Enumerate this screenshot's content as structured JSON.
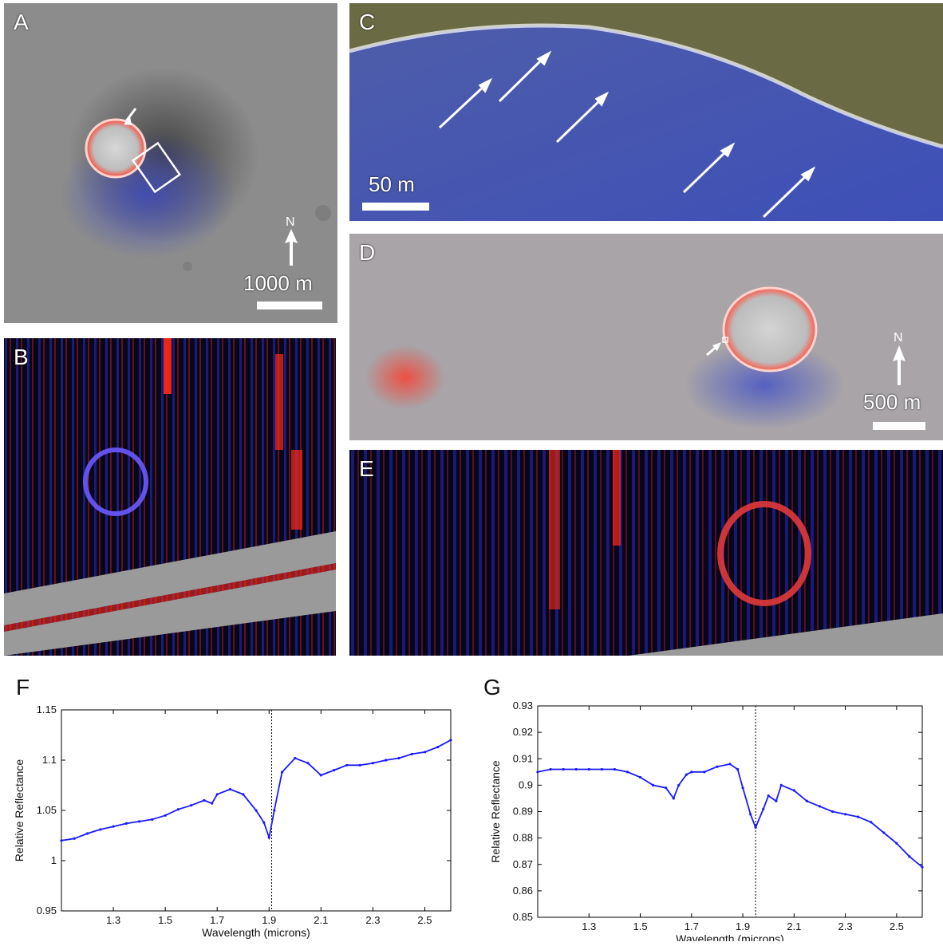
{
  "panels": {
    "A": {
      "label": "A",
      "scale": "1000 m",
      "north": "N"
    },
    "B": {
      "label": "B"
    },
    "C": {
      "label": "C",
      "scale": "50 m"
    },
    "D": {
      "label": "D",
      "scale": "500 m",
      "north": "N"
    },
    "E": {
      "label": "E"
    }
  },
  "colors": {
    "red_signal": "#ff2a1a",
    "blue_signal": "#2a3aff",
    "series": "#1a1aff"
  },
  "chart_data": [
    {
      "type": "line",
      "label": "F",
      "xlabel": "Wavelength (microns)",
      "ylabel": "Relative Reflectance",
      "xlim": [
        1.1,
        2.6
      ],
      "ylim": [
        0.95,
        1.15
      ],
      "xticks": [
        1.3,
        1.5,
        1.7,
        1.9,
        2.1,
        2.3,
        2.5
      ],
      "yticks": [
        0.95,
        1,
        1.05,
        1.1,
        1.15
      ],
      "ytick_labels": [
        "0.95",
        "1",
        "1.05",
        "1.1",
        "1.15"
      ],
      "vline": 1.91,
      "x": [
        1.1,
        1.15,
        1.2,
        1.25,
        1.3,
        1.35,
        1.4,
        1.45,
        1.5,
        1.55,
        1.6,
        1.65,
        1.68,
        1.7,
        1.75,
        1.8,
        1.85,
        1.88,
        1.9,
        1.92,
        1.95,
        2.0,
        2.05,
        2.1,
        2.15,
        2.2,
        2.25,
        2.3,
        2.35,
        2.4,
        2.45,
        2.5,
        2.55,
        2.6
      ],
      "y": [
        1.02,
        1.022,
        1.027,
        1.031,
        1.034,
        1.037,
        1.039,
        1.041,
        1.045,
        1.051,
        1.055,
        1.06,
        1.057,
        1.066,
        1.071,
        1.066,
        1.05,
        1.038,
        1.023,
        1.05,
        1.088,
        1.102,
        1.097,
        1.085,
        1.09,
        1.095,
        1.095,
        1.097,
        1.1,
        1.102,
        1.106,
        1.108,
        1.113,
        1.12
      ]
    },
    {
      "type": "line",
      "label": "G",
      "xlabel": "Wavelength (microns)",
      "ylabel": "Relative Reflectance",
      "xlim": [
        1.1,
        2.6
      ],
      "ylim": [
        0.85,
        0.93
      ],
      "xticks": [
        1.3,
        1.5,
        1.7,
        1.9,
        2.1,
        2.3,
        2.5
      ],
      "yticks": [
        0.85,
        0.86,
        0.87,
        0.88,
        0.89,
        0.9,
        0.91,
        0.92,
        0.93
      ],
      "ytick_labels": [
        "0.85",
        "0.86",
        "0.87",
        "0.88",
        "0.89",
        "0.9",
        "0.91",
        "0.92",
        "0.93"
      ],
      "vline": 1.95,
      "x": [
        1.1,
        1.15,
        1.2,
        1.25,
        1.3,
        1.35,
        1.4,
        1.45,
        1.5,
        1.55,
        1.6,
        1.63,
        1.65,
        1.68,
        1.7,
        1.75,
        1.8,
        1.85,
        1.88,
        1.9,
        1.93,
        1.95,
        1.98,
        2.0,
        2.03,
        2.05,
        2.1,
        2.15,
        2.2,
        2.25,
        2.3,
        2.35,
        2.4,
        2.45,
        2.5,
        2.55,
        2.6
      ],
      "y": [
        0.905,
        0.906,
        0.906,
        0.906,
        0.906,
        0.906,
        0.906,
        0.905,
        0.903,
        0.9,
        0.899,
        0.895,
        0.9,
        0.904,
        0.905,
        0.905,
        0.907,
        0.908,
        0.906,
        0.899,
        0.889,
        0.884,
        0.891,
        0.896,
        0.894,
        0.9,
        0.898,
        0.894,
        0.892,
        0.89,
        0.889,
        0.888,
        0.886,
        0.882,
        0.878,
        0.873,
        0.869
      ]
    }
  ]
}
